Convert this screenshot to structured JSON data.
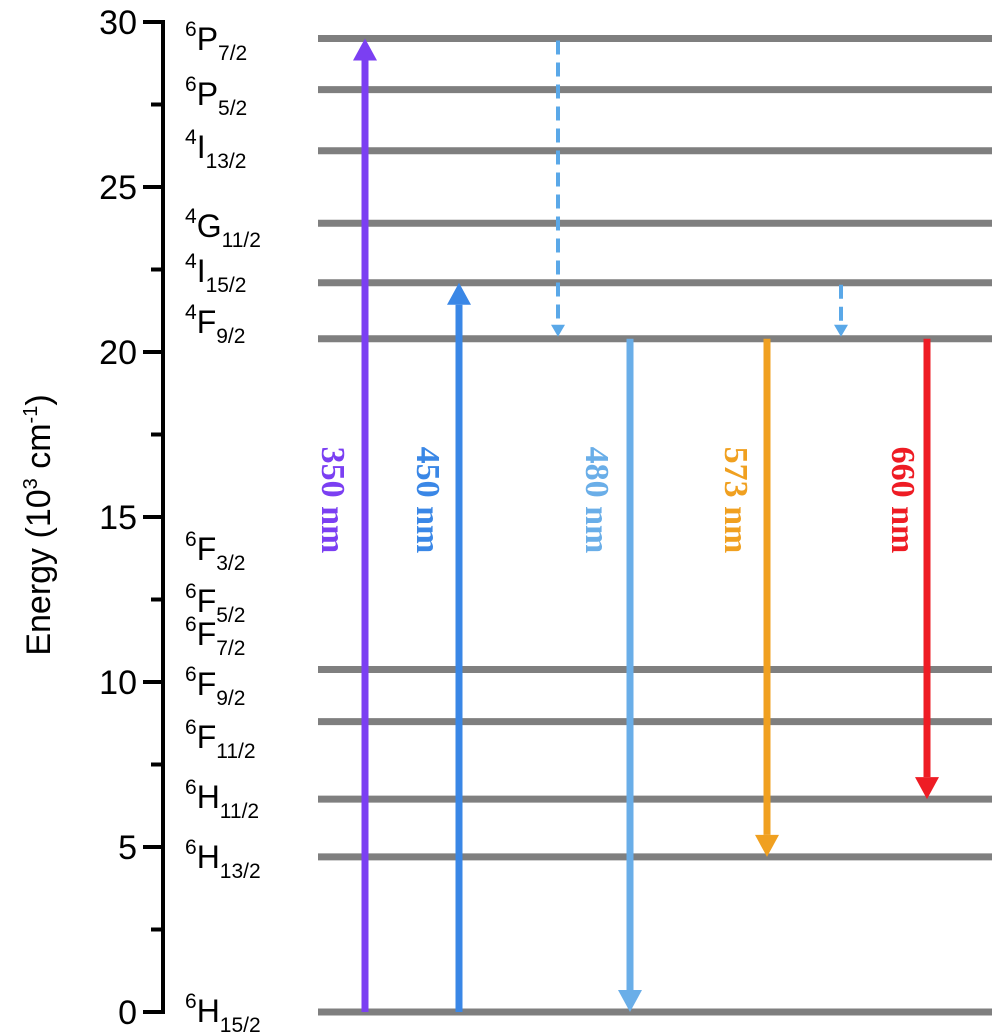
{
  "axis": {
    "title_main": "Energy (10",
    "title_exp": "3",
    "title_mid": " cm",
    "title_exp2": "-1",
    "title_end": ")",
    "min": 0,
    "max": 30,
    "ticks": [
      {
        "value": 0,
        "label": "0"
      },
      {
        "value": 5,
        "label": "5"
      },
      {
        "value": 10,
        "label": "10"
      },
      {
        "value": 15,
        "label": "15"
      },
      {
        "value": 20,
        "label": "20"
      },
      {
        "value": 25,
        "label": "25"
      },
      {
        "value": 30,
        "label": "30"
      }
    ],
    "minor_ticks": [
      2.5,
      7.5,
      12.5,
      17.5,
      22.5,
      27.5
    ]
  },
  "levels": [
    {
      "sup": "6",
      "base": "H",
      "sub": "15/2",
      "energy": 0
    },
    {
      "sup": "6",
      "base": "H",
      "sub": "13/2",
      "energy": 4.7
    },
    {
      "sup": "6",
      "base": "H",
      "sub": "11/2",
      "energy": 6.45
    },
    {
      "sup": "6",
      "base": "F",
      "sub": "11/2",
      "energy": 8.8
    },
    {
      "sup": "6",
      "base": "F",
      "sub": "9/2",
      "energy": 10.38
    },
    {
      "sup": "6",
      "base": "F",
      "sub": "7/2",
      "energy": null
    },
    {
      "sup": "6",
      "base": "F",
      "sub": "5/2",
      "energy": null
    },
    {
      "sup": "6",
      "base": "F",
      "sub": "3/2",
      "energy": null
    },
    {
      "sup": "4",
      "base": "F",
      "sub": "9/2",
      "energy": 20.4
    },
    {
      "sup": "4",
      "base": "I",
      "sub": "15/2",
      "energy": 22.1
    },
    {
      "sup": "4",
      "base": "G",
      "sub": "11/2",
      "energy": 23.9
    },
    {
      "sup": "4",
      "base": "I",
      "sub": "13/2",
      "energy": 26.1
    },
    {
      "sup": "6",
      "base": "P",
      "sub": "5/2",
      "energy": 27.95
    },
    {
      "sup": "6",
      "base": "P",
      "sub": "7/2",
      "energy": 29.5
    }
  ],
  "transitions": [
    {
      "label": "350 nm",
      "color": "#7b3ff2",
      "from": 0,
      "to": 29.5,
      "direction": "up"
    },
    {
      "label": "450 nm",
      "color": "#3a87e6",
      "from": 0,
      "to": 22.1,
      "direction": "up"
    },
    {
      "label": "480 nm",
      "color": "#6aaee8",
      "from": 20.4,
      "to": 0,
      "direction": "down"
    },
    {
      "label": "573 nm",
      "color": "#f0a020",
      "from": 20.4,
      "to": 4.7,
      "direction": "down"
    },
    {
      "label": "660 nm",
      "color": "#ee1c24",
      "from": 20.4,
      "to": 6.45,
      "direction": "down"
    }
  ],
  "relaxations": [
    {
      "color": "#5aa8e8",
      "from": 29.5,
      "to": 20.4
    },
    {
      "color": "#5aa8e8",
      "from": 22.1,
      "to": 20.4
    }
  ],
  "colors": {
    "level_line": "#7f7f7f",
    "axis": "#000000"
  }
}
